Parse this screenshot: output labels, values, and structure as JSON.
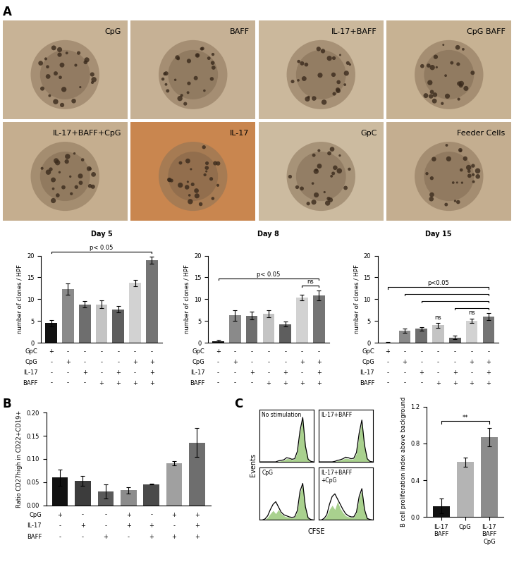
{
  "panels": [
    "A",
    "B",
    "C"
  ],
  "images": [
    "CpG",
    "BAFF",
    "IL-17+BAFF",
    "CpG BAFF",
    "IL-17+BAFF+CpG",
    "IL-17",
    "GpC",
    "Feeder Cells"
  ],
  "shared_labels": {
    "histograms": {
      "xlabel": "CFSE",
      "ylabel": "Events"
    }
  },
  "chart_data": [
    {
      "type": "bar",
      "title": "Day 5",
      "ylabel": "number of clones / HPF",
      "categories": [
        null,
        null,
        null,
        null,
        null,
        null,
        null
      ],
      "values": [
        4.5,
        12.3,
        8.8,
        8.8,
        7.7,
        13.7,
        18.9
      ],
      "errors": [
        0.7,
        1.3,
        0.7,
        0.9,
        0.7,
        0.7,
        0.8
      ],
      "colors": [
        "#111111",
        "#8a8a8a",
        "#6e6e6e",
        "#c4c4c4",
        "#5e5e5e",
        "#d2d2d2",
        "#747474"
      ],
      "ylim": [
        0,
        20
      ],
      "yticks": [
        0,
        5,
        10,
        15,
        20
      ],
      "tick_labels": "y",
      "conditions": [
        {
          "name": "GpC",
          "marks": [
            "+",
            "-",
            "-",
            "-",
            "-",
            "-",
            "-"
          ]
        },
        {
          "name": "CpG",
          "marks": [
            "-",
            "+",
            "-",
            "-",
            "-",
            "+",
            "+"
          ]
        },
        {
          "name": "IL-17",
          "marks": [
            "-",
            "-",
            "+",
            "-",
            "+",
            "-",
            "+"
          ]
        },
        {
          "name": "BAFF",
          "marks": [
            "-",
            "-",
            "-",
            "+",
            "+",
            "+",
            "+"
          ]
        }
      ],
      "annotations": [
        {
          "text": "p< 0.05",
          "from": 0,
          "to": 6
        }
      ]
    },
    {
      "type": "bar",
      "title": "Day 8",
      "ylabel": "number of clones / HPF",
      "categories": [
        null,
        null,
        null,
        null,
        null,
        null,
        null
      ],
      "values": [
        0.3,
        6.3,
        6.2,
        6.7,
        4.3,
        10.4,
        10.9
      ],
      "errors": [
        0.3,
        1.2,
        0.9,
        0.8,
        0.5,
        0.6,
        1.1
      ],
      "colors": [
        "#111111",
        "#8a8a8a",
        "#6e6e6e",
        "#c4c4c4",
        "#5e5e5e",
        "#d2d2d2",
        "#747474"
      ],
      "ylim": [
        0,
        20
      ],
      "yticks": [
        0,
        5,
        10,
        15,
        20
      ],
      "tick_labels": "y",
      "conditions": [
        {
          "name": "GpC",
          "marks": [
            "+",
            "-",
            "-",
            "-",
            "-",
            "-",
            "-"
          ]
        },
        {
          "name": "CpG",
          "marks": [
            "-",
            "+",
            "-",
            "-",
            "-",
            "+",
            "+"
          ]
        },
        {
          "name": "IL-17",
          "marks": [
            "-",
            "-",
            "+",
            "-",
            "+",
            "-",
            "+"
          ]
        },
        {
          "name": "BAFF",
          "marks": [
            "-",
            "-",
            "-",
            "+",
            "+",
            "+",
            "+"
          ]
        }
      ],
      "annotations": [
        {
          "text": "ns",
          "from": 5,
          "to": 6
        },
        {
          "text": "p< 0.05",
          "from": 0,
          "to": 6
        }
      ]
    },
    {
      "type": "bar",
      "title": "Day 15",
      "ylabel": "number of clones / HPF",
      "categories": [
        null,
        null,
        null,
        null,
        null,
        null,
        null
      ],
      "values": [
        0.1,
        2.8,
        3.2,
        4.0,
        1.2,
        5.0,
        6.0
      ],
      "errors": [
        0.1,
        0.5,
        0.4,
        0.5,
        0.4,
        0.5,
        0.8
      ],
      "colors": [
        "#111111",
        "#8a8a8a",
        "#6e6e6e",
        "#c4c4c4",
        "#5e5e5e",
        "#d2d2d2",
        "#747474"
      ],
      "ylim": [
        0,
        20
      ],
      "yticks": [
        0,
        5,
        10,
        15,
        20
      ],
      "tick_labels": "y",
      "conditions": [
        {
          "name": "GpC",
          "marks": [
            "+",
            "-",
            "-",
            "-",
            "-",
            "-",
            "-"
          ]
        },
        {
          "name": "CpG",
          "marks": [
            "-",
            "+",
            "-",
            "-",
            "-",
            "+",
            "+"
          ]
        },
        {
          "name": "IL-17",
          "marks": [
            "-",
            "-",
            "+",
            "-",
            "+",
            "-",
            "+"
          ]
        },
        {
          "name": "BAFF",
          "marks": [
            "-",
            "-",
            "-",
            "+",
            "+",
            "+",
            "+"
          ]
        }
      ],
      "annotations": [
        {
          "text": "ns",
          "from": 3,
          "to": 3
        },
        {
          "text": "ns",
          "from": 5,
          "to": 5
        },
        {
          "from": 4,
          "to": 6
        },
        {
          "from": 2,
          "to": 6
        },
        {
          "from": 1,
          "to": 6
        },
        {
          "text": "p<0.05",
          "from": 0,
          "to": 6
        }
      ]
    },
    {
      "type": "bar",
      "ylabel": "Ratio CD27high in CD22+CD19+",
      "categories": [
        null,
        null,
        null,
        null,
        null,
        null,
        null
      ],
      "values": [
        0.06,
        0.053,
        0.03,
        0.033,
        0.046,
        0.091,
        0.135
      ],
      "errors": [
        0.017,
        0.01,
        0.015,
        0.007,
        0.001,
        0.005,
        0.031
      ],
      "colors": [
        "#111111",
        "#3c3c3c",
        "#5a5a5a",
        "#8c8c8c",
        "#4a4a4a",
        "#a0a0a0",
        "#6e6e6e"
      ],
      "ylim": [
        0,
        0.2
      ],
      "yticks": [
        {
          "value": 0,
          "label": "0.00"
        },
        {
          "value": 0.05,
          "label": "0.05"
        },
        {
          "value": 0.1,
          "label": "0.10"
        },
        {
          "value": 0.15,
          "label": "0.15"
        },
        {
          "value": 0.2,
          "label": "0.20"
        }
      ],
      "tick_labels": "y",
      "conditions": [
        {
          "name": "CpG",
          "marks": [
            "+",
            "-",
            "-",
            "+",
            "-",
            "+",
            "+"
          ]
        },
        {
          "name": "IL-17",
          "marks": [
            "-",
            "+",
            "-",
            "+",
            "+",
            "-",
            "+"
          ]
        },
        {
          "name": "BAFF",
          "marks": [
            "-",
            "-",
            "+",
            "-",
            "+",
            "+",
            "+"
          ]
        }
      ]
    },
    {
      "type": "line",
      "title": "No stimulation",
      "tick_labels": false,
      "x": [
        0,
        1,
        2,
        3,
        4,
        5,
        6,
        7,
        8,
        9,
        10,
        11,
        12,
        13,
        14,
        15,
        16,
        17,
        18,
        19,
        20
      ],
      "xlim": [
        0,
        20
      ],
      "ylim": [
        0,
        100
      ],
      "series": [
        {
          "type": "area",
          "color": "#a9d18e",
          "values": [
            0,
            0,
            0,
            0,
            0,
            0,
            0,
            1,
            2,
            3,
            6,
            6,
            4,
            5,
            18,
            58,
            84,
            28,
            4,
            1,
            0
          ]
        },
        {
          "type": "line",
          "color": "#000000",
          "values": [
            0,
            0,
            0,
            0,
            0,
            0,
            0,
            2,
            3,
            4,
            8,
            7,
            5,
            6,
            20,
            60,
            85,
            30,
            5,
            1,
            0
          ]
        }
      ]
    },
    {
      "type": "line",
      "title": "IL-17+BAFF",
      "tick_labels": false,
      "x": [
        0,
        1,
        2,
        3,
        4,
        5,
        6,
        7,
        8,
        9,
        10,
        11,
        12,
        13,
        14,
        15,
        16,
        17,
        18,
        19,
        20
      ],
      "xlim": [
        0,
        20
      ],
      "ylim": [
        0,
        100
      ],
      "series": [
        {
          "type": "area",
          "color": "#a9d18e",
          "values": [
            0,
            0,
            0,
            0,
            0,
            0,
            1,
            2,
            3,
            5,
            7,
            6,
            5,
            6,
            16,
            52,
            78,
            30,
            5,
            1,
            0
          ]
        },
        {
          "type": "line",
          "color": "#000000",
          "values": [
            0,
            0,
            0,
            0,
            0,
            0,
            1,
            3,
            4,
            6,
            9,
            8,
            6,
            7,
            18,
            55,
            80,
            32,
            6,
            1,
            0
          ]
        }
      ]
    },
    {
      "type": "line",
      "title": "CpG",
      "tick_labels": false,
      "x": [
        0,
        1,
        2,
        3,
        4,
        5,
        6,
        7,
        8,
        9,
        10,
        11,
        12,
        13,
        14,
        15,
        16,
        17,
        18,
        19,
        20
      ],
      "xlim": [
        0,
        20
      ],
      "ylim": [
        0,
        100
      ],
      "series": [
        {
          "type": "area",
          "color": "#a9d18e",
          "values": [
            0,
            0,
            1,
            5,
            12,
            18,
            12,
            20,
            12,
            8,
            6,
            5,
            4,
            5,
            16,
            52,
            68,
            22,
            3,
            1,
            0
          ]
        },
        {
          "type": "line",
          "color": "#000000",
          "values": [
            0,
            0,
            2,
            8,
            20,
            30,
            35,
            25,
            15,
            10,
            8,
            6,
            5,
            6,
            18,
            55,
            70,
            25,
            4,
            1,
            0
          ]
        }
      ]
    },
    {
      "type": "line",
      "title": "IL-17+BAFF\n+CpG",
      "tick_labels": false,
      "x": [
        0,
        1,
        2,
        3,
        4,
        5,
        6,
        7,
        8,
        9,
        10,
        11,
        12,
        13,
        14,
        15,
        16,
        17,
        18,
        19,
        20
      ],
      "xlim": [
        0,
        20
      ],
      "ylim": [
        0,
        100
      ],
      "series": [
        {
          "type": "area",
          "color": "#a9d18e",
          "values": [
            0,
            0,
            2,
            8,
            20,
            28,
            20,
            35,
            22,
            14,
            8,
            6,
            5,
            5,
            14,
            42,
            58,
            18,
            3,
            0,
            0
          ]
        },
        {
          "type": "line",
          "color": "#000000",
          "values": [
            0,
            0,
            3,
            10,
            30,
            45,
            50,
            40,
            30,
            20,
            12,
            8,
            6,
            6,
            15,
            45,
            60,
            20,
            3,
            1,
            0
          ]
        }
      ]
    },
    {
      "type": "bar",
      "ylabel": "B cell proliferation index above background",
      "categories": [
        "IL-17\nBAFF",
        "CpG",
        "IL-17\nBAFF\nCpG"
      ],
      "values": [
        0.12,
        0.6,
        0.87
      ],
      "errors": [
        0.08,
        0.05,
        0.1
      ],
      "colors": [
        "#111111",
        "#b4b4b4",
        "#8c8c8c"
      ],
      "ylim": [
        0,
        1.2
      ],
      "yticks": [
        {
          "value": 0,
          "label": "0.0"
        },
        {
          "value": 0.4,
          "label": "0.4"
        },
        {
          "value": 0.8,
          "label": "0.8"
        },
        {
          "value": 1.2,
          "label": "1.2"
        }
      ],
      "annotations": [
        {
          "text": "**",
          "from": 0,
          "to": 2
        }
      ]
    }
  ]
}
